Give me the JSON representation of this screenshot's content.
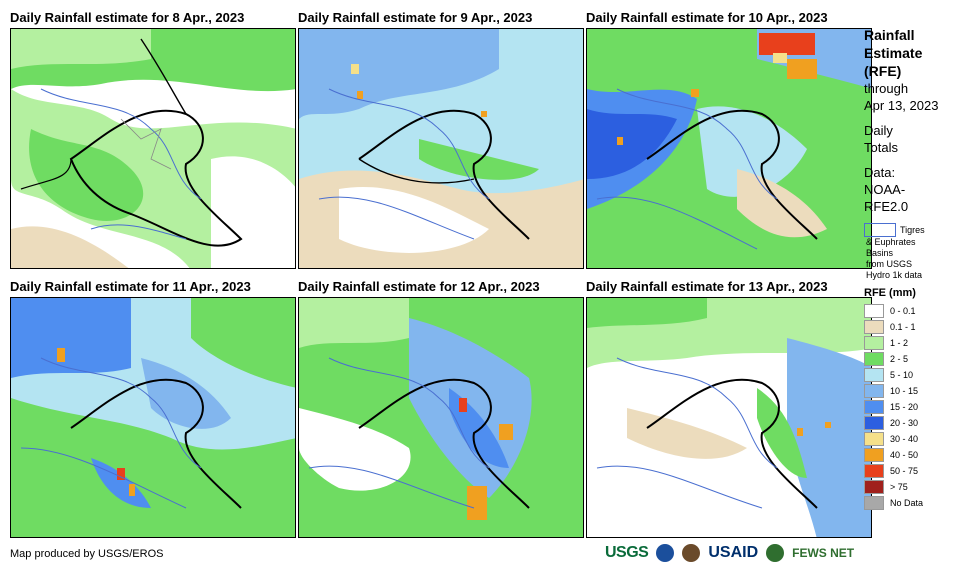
{
  "panels": [
    {
      "title": "Daily Rainfall estimate for 8 Apr., 2023"
    },
    {
      "title": "Daily Rainfall estimate for 9 Apr., 2023"
    },
    {
      "title": "Daily Rainfall estimate for 10 Apr., 2023"
    },
    {
      "title": "Daily Rainfall estimate for 11 Apr., 2023"
    },
    {
      "title": "Daily Rainfall estimate for 12 Apr., 2023"
    },
    {
      "title": "Daily Rainfall estimate for 13 Apr., 2023"
    }
  ],
  "legend": {
    "title_lines": [
      "Rainfall",
      "Estimate",
      "(RFE)"
    ],
    "through": "through",
    "date": "Apr 13, 2023",
    "daily": "Daily",
    "totals": "Totals",
    "data_label": "Data:",
    "data_source_1": "NOAA-",
    "data_source_2": "RFE2.0",
    "basin_line1": "Tigres",
    "basin_line2": "& Euphrates",
    "basin_line3": "Basins",
    "basin_line4": "from USGS",
    "basin_line5": "Hydro 1k data",
    "rfe_heading": "RFE (mm)",
    "classes": [
      {
        "label": "0 - 0.1",
        "color": "#ffffff"
      },
      {
        "label": "0.1 - 1",
        "color": "#ecdcbd"
      },
      {
        "label": "1 - 2",
        "color": "#b4f0a0"
      },
      {
        "label": "2 - 5",
        "color": "#6fdc62"
      },
      {
        "label": "5 - 10",
        "color": "#b4e4f2"
      },
      {
        "label": "10 - 15",
        "color": "#82b6ee"
      },
      {
        "label": "15 - 20",
        "color": "#4f8ef0"
      },
      {
        "label": "20 - 30",
        "color": "#2c5fe0"
      },
      {
        "label": "30 - 40",
        "color": "#f5e08a"
      },
      {
        "label": "40 - 50",
        "color": "#f0a020"
      },
      {
        "label": "50 - 75",
        "color": "#e8401c"
      },
      {
        "label": "> 75",
        "color": "#a0201c"
      },
      {
        "label": "No Data",
        "color": "#a8a8a8"
      }
    ]
  },
  "footer": {
    "credit": "Map produced by USGS/EROS",
    "logo_usgs": "USGS",
    "logo_usaid": "USAID",
    "logo_fews": "FEWS NET"
  }
}
